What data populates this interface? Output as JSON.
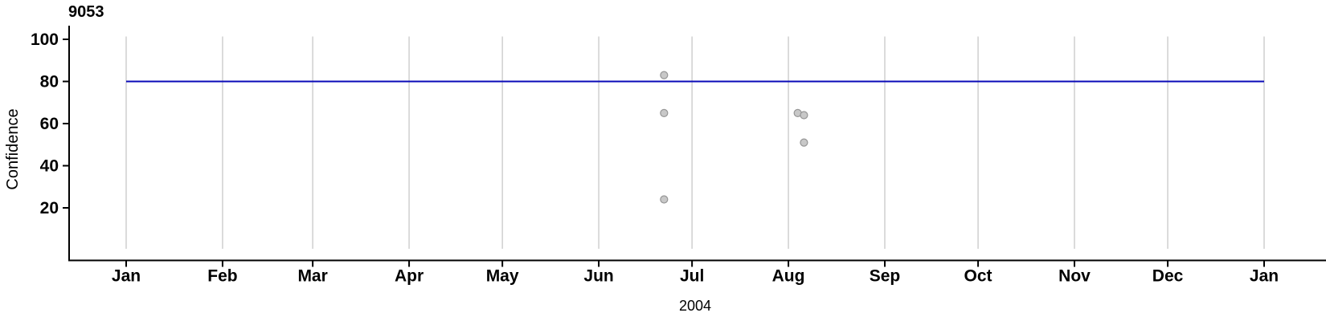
{
  "chart_data": {
    "type": "scatter",
    "title": "9053",
    "xlabel": "2004",
    "ylabel": "Confidence",
    "x_axis": {
      "unit": "month of 2004",
      "range_days": [
        0,
        366
      ],
      "ticks": [
        {
          "label": "Jan",
          "day": 0
        },
        {
          "label": "Feb",
          "day": 31
        },
        {
          "label": "Mar",
          "day": 60
        },
        {
          "label": "Apr",
          "day": 91
        },
        {
          "label": "May",
          "day": 121
        },
        {
          "label": "Jun",
          "day": 152
        },
        {
          "label": "Jul",
          "day": 182
        },
        {
          "label": "Aug",
          "day": 213
        },
        {
          "label": "Sep",
          "day": 244
        },
        {
          "label": "Oct",
          "day": 274
        },
        {
          "label": "Nov",
          "day": 305
        },
        {
          "label": "Dec",
          "day": 335
        },
        {
          "label": "Jan",
          "day": 366
        }
      ]
    },
    "y_axis": {
      "ticks": [
        20,
        40,
        60,
        80,
        100
      ],
      "range": [
        0,
        101.5
      ]
    },
    "grid": {
      "vertical_month_lines": true,
      "horizontal_lines": false
    },
    "reference_line": {
      "value": 80,
      "span_days": [
        0,
        366
      ]
    },
    "points": [
      {
        "date": "Jun 22",
        "day": 173,
        "confidence": 83
      },
      {
        "date": "Jun 22",
        "day": 173,
        "confidence": 65
      },
      {
        "date": "Jun 22",
        "day": 173,
        "confidence": 24
      },
      {
        "date": "Aug 4",
        "day": 216,
        "confidence": 65
      },
      {
        "date": "Aug 6",
        "day": 218,
        "confidence": 64
      },
      {
        "date": "Aug 6",
        "day": 218,
        "confidence": 51
      }
    ],
    "colors": {
      "axis": "#000000",
      "grid": "#d2d2d2",
      "reference_line": "#0a0ab8",
      "point_fill": "#c8c8c8",
      "point_stroke": "#969696"
    }
  }
}
